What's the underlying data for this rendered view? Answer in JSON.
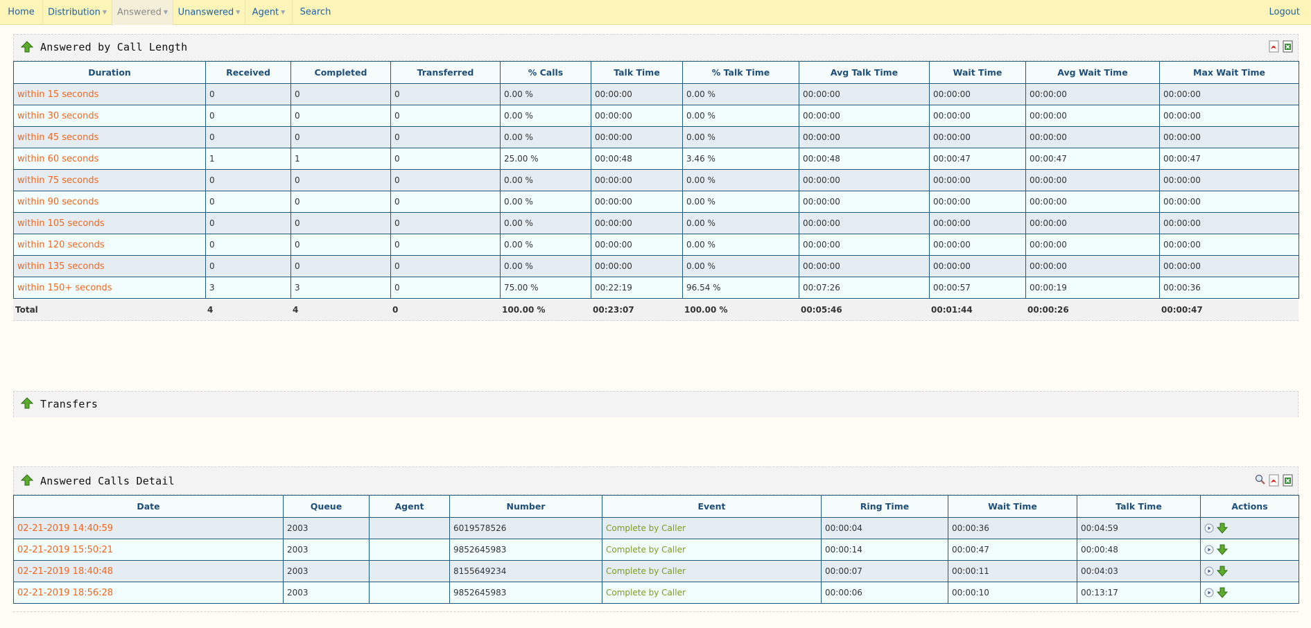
{
  "nav": {
    "items": [
      {
        "label": "Home",
        "caret": false
      },
      {
        "label": "Distribution",
        "caret": true
      },
      {
        "label": "Answered",
        "caret": true
      },
      {
        "label": "Unanswered",
        "caret": true
      },
      {
        "label": "Agent",
        "caret": true
      },
      {
        "label": "Search",
        "caret": false
      }
    ],
    "active": "Answered",
    "logout": "Logout"
  },
  "call_length": {
    "title": "Answered by Call Length",
    "columns": [
      "Duration",
      "Received",
      "Completed",
      "Transferred",
      "% Calls",
      "Talk Time",
      "% Talk Time",
      "Avg Talk Time",
      "Wait Time",
      "Avg Wait Time",
      "Max Wait Time"
    ],
    "rows": [
      [
        "within 15 seconds",
        "0",
        "0",
        "0",
        "0.00 %",
        "00:00:00",
        "0.00 %",
        "00:00:00",
        "00:00:00",
        "00:00:00",
        "00:00:00"
      ],
      [
        "within 30 seconds",
        "0",
        "0",
        "0",
        "0.00 %",
        "00:00:00",
        "0.00 %",
        "00:00:00",
        "00:00:00",
        "00:00:00",
        "00:00:00"
      ],
      [
        "within 45 seconds",
        "0",
        "0",
        "0",
        "0.00 %",
        "00:00:00",
        "0.00 %",
        "00:00:00",
        "00:00:00",
        "00:00:00",
        "00:00:00"
      ],
      [
        "within 60 seconds",
        "1",
        "1",
        "0",
        "25.00 %",
        "00:00:48",
        "3.46 %",
        "00:00:48",
        "00:00:47",
        "00:00:47",
        "00:00:47"
      ],
      [
        "within 75 seconds",
        "0",
        "0",
        "0",
        "0.00 %",
        "00:00:00",
        "0.00 %",
        "00:00:00",
        "00:00:00",
        "00:00:00",
        "00:00:00"
      ],
      [
        "within 90 seconds",
        "0",
        "0",
        "0",
        "0.00 %",
        "00:00:00",
        "0.00 %",
        "00:00:00",
        "00:00:00",
        "00:00:00",
        "00:00:00"
      ],
      [
        "within 105 seconds",
        "0",
        "0",
        "0",
        "0.00 %",
        "00:00:00",
        "0.00 %",
        "00:00:00",
        "00:00:00",
        "00:00:00",
        "00:00:00"
      ],
      [
        "within 120 seconds",
        "0",
        "0",
        "0",
        "0.00 %",
        "00:00:00",
        "0.00 %",
        "00:00:00",
        "00:00:00",
        "00:00:00",
        "00:00:00"
      ],
      [
        "within 135 seconds",
        "0",
        "0",
        "0",
        "0.00 %",
        "00:00:00",
        "0.00 %",
        "00:00:00",
        "00:00:00",
        "00:00:00",
        "00:00:00"
      ],
      [
        "within 150+ seconds",
        "3",
        "3",
        "0",
        "75.00 %",
        "00:22:19",
        "96.54 %",
        "00:07:26",
        "00:00:57",
        "00:00:19",
        "00:00:36"
      ]
    ],
    "totals": [
      "Total",
      "4",
      "4",
      "0",
      "100.00 %",
      "00:23:07",
      "100.00 %",
      "00:05:46",
      "00:01:44",
      "00:00:26",
      "00:00:47"
    ],
    "icons": [
      "pdf-export-icon",
      "excel-export-icon"
    ]
  },
  "transfers": {
    "title": "Transfers"
  },
  "detail": {
    "title": "Answered Calls Detail",
    "columns": [
      "Date",
      "Queue",
      "Agent",
      "Number",
      "Event",
      "Ring Time",
      "Wait Time",
      "Talk Time",
      "Actions"
    ],
    "rows": [
      [
        "02-21-2019 14:40:59",
        "2003",
        "",
        "6019578526",
        "Complete by Caller",
        "00:00:04",
        "00:00:36",
        "00:04:59"
      ],
      [
        "02-21-2019 15:50:21",
        "2003",
        "",
        "9852645983",
        "Complete by Caller",
        "00:00:14",
        "00:00:47",
        "00:00:48"
      ],
      [
        "02-21-2019 18:40:48",
        "2003",
        "",
        "8155649234",
        "Complete by Caller",
        "00:00:07",
        "00:00:11",
        "00:04:03"
      ],
      [
        "02-21-2019 18:56:28",
        "2003",
        "",
        "9852645983",
        "Complete by Caller",
        "00:00:06",
        "00:00:10",
        "00:13:17"
      ]
    ],
    "icons": [
      "search-icon",
      "pdf-export-icon",
      "excel-export-icon"
    ],
    "row_actions": [
      "play-icon",
      "download-icon"
    ]
  },
  "colors": {
    "nav_bg": "#fdf5b8",
    "link": "#1f5fa5",
    "orange_link": "#f2661f",
    "event_green": "#7a9d1a",
    "table_border": "#21597a"
  }
}
